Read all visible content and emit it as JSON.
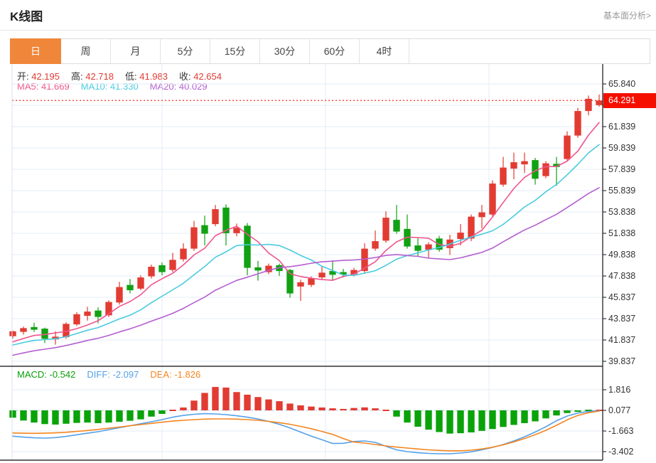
{
  "header": {
    "title": "K线图",
    "analysis_link": "基本面分析>"
  },
  "tabs": {
    "items": [
      {
        "key": "day",
        "label": "日"
      },
      {
        "key": "week",
        "label": "周"
      },
      {
        "key": "month",
        "label": "月"
      },
      {
        "key": "5min",
        "label": "5分"
      },
      {
        "key": "15min",
        "label": "15分"
      },
      {
        "key": "30min",
        "label": "30分"
      },
      {
        "key": "60min",
        "label": "60分"
      },
      {
        "key": "4h",
        "label": "4时"
      }
    ],
    "selected_key": "day"
  },
  "readout": {
    "ohlc": [
      {
        "label": "开:",
        "value": "42.195"
      },
      {
        "label": "高:",
        "value": "42.718"
      },
      {
        "label": "低:",
        "value": "41.983"
      },
      {
        "label": "收:",
        "value": "42.654"
      }
    ],
    "ma": [
      {
        "label": "MA5:",
        "value": "41.669",
        "color": "#f0558d"
      },
      {
        "label": "MA10:",
        "value": "41.330",
        "color": "#49cbe0"
      },
      {
        "label": "MA20:",
        "value": "40.029",
        "color": "#b45fd0"
      }
    ],
    "macd": [
      {
        "label": "MACD:",
        "value": "-0.542",
        "color": "#0a9f0a"
      },
      {
        "label": "DIFF:",
        "value": "-2.097",
        "color": "#55a0e8"
      },
      {
        "label": "DEA:",
        "value": "-1.826",
        "color": "#f5851f"
      }
    ]
  },
  "price_axis": {
    "ticks": [
      "65.840",
      "63.840",
      "61.839",
      "59.839",
      "57.839",
      "55.839",
      "53.838",
      "51.838",
      "49.838",
      "47.838",
      "45.837",
      "43.837",
      "41.837",
      "39.837"
    ],
    "last_price": "64.291"
  },
  "macd_axis": {
    "ticks": [
      "1.816",
      "0.077",
      "-1.663",
      "-3.402"
    ]
  },
  "colors": {
    "up": "#e23b32",
    "down": "#12a113",
    "ma5": "#f0558d",
    "ma10": "#49cbe0",
    "ma20": "#b45fd0",
    "diff": "#55a0e8",
    "dea": "#f5851f",
    "hist_red": "#e23b32",
    "hist_green": "#09a309",
    "accent_orange": "#f0863a",
    "badge_red": "#f40f00",
    "dotted_red": "#ff2d1e",
    "grid": "#e3ecf7",
    "zero_dash": "#a8cdf0",
    "axis_text": "#333333",
    "border_dark": "#333333",
    "border_light": "#d8e2ee",
    "value_red": "#e23b32"
  },
  "chart_data": {
    "type": "candlestick",
    "sub_chart": "macd",
    "axis": {
      "price_min": 39.837,
      "price_max": 65.84,
      "last_close": 64.291,
      "macd_min": -3.402,
      "macd_max": 1.816
    },
    "candles": [
      [
        42.195,
        42.718,
        41.983,
        42.654
      ],
      [
        42.6,
        43.1,
        42.35,
        42.95
      ],
      [
        43.05,
        43.45,
        42.6,
        42.8
      ],
      [
        42.9,
        43.0,
        41.55,
        41.95
      ],
      [
        41.9,
        42.65,
        41.4,
        42.15
      ],
      [
        42.1,
        43.5,
        41.95,
        43.35
      ],
      [
        43.3,
        44.45,
        43.15,
        44.25
      ],
      [
        44.1,
        44.95,
        43.65,
        44.5
      ],
      [
        44.6,
        44.9,
        43.4,
        44.0
      ],
      [
        44.15,
        45.55,
        44.0,
        45.4
      ],
      [
        45.35,
        47.3,
        45.15,
        46.8
      ],
      [
        47.0,
        47.55,
        46.2,
        46.5
      ],
      [
        46.65,
        47.9,
        46.5,
        47.7
      ],
      [
        47.8,
        48.9,
        47.6,
        48.7
      ],
      [
        48.85,
        49.1,
        47.9,
        48.2
      ],
      [
        48.4,
        50.0,
        48.2,
        49.35
      ],
      [
        49.4,
        50.9,
        49.2,
        50.4
      ],
      [
        50.4,
        53.0,
        50.2,
        52.4
      ],
      [
        52.6,
        53.5,
        50.7,
        51.8
      ],
      [
        52.7,
        54.5,
        52.5,
        54.1
      ],
      [
        54.25,
        54.55,
        50.7,
        51.85
      ],
      [
        51.85,
        52.75,
        51.55,
        52.35
      ],
      [
        52.55,
        52.8,
        47.9,
        48.6
      ],
      [
        48.65,
        49.25,
        47.4,
        48.35
      ],
      [
        48.2,
        49.0,
        48.0,
        48.8
      ],
      [
        48.85,
        49.0,
        47.85,
        48.3
      ],
      [
        48.4,
        48.5,
        45.8,
        46.2
      ],
      [
        46.85,
        47.5,
        45.5,
        47.25
      ],
      [
        47.0,
        47.8,
        46.8,
        47.6
      ],
      [
        47.7,
        48.8,
        47.5,
        48.15
      ],
      [
        48.3,
        49.3,
        47.4,
        47.95
      ],
      [
        48.2,
        48.5,
        47.7,
        47.98
      ],
      [
        48.0,
        48.6,
        47.8,
        48.4
      ],
      [
        48.3,
        50.9,
        48.1,
        50.4
      ],
      [
        50.4,
        52.1,
        50.2,
        51.1
      ],
      [
        51.15,
        53.9,
        50.95,
        53.3
      ],
      [
        53.1,
        54.5,
        51.8,
        52.0
      ],
      [
        52.25,
        53.6,
        50.4,
        50.6
      ],
      [
        50.7,
        51.4,
        49.7,
        50.2
      ],
      [
        50.3,
        51.0,
        49.5,
        50.8
      ],
      [
        51.35,
        51.6,
        50.1,
        50.3
      ],
      [
        50.45,
        51.7,
        49.8,
        51.25
      ],
      [
        51.3,
        52.7,
        50.7,
        51.9
      ],
      [
        51.35,
        53.6,
        51.1,
        53.4
      ],
      [
        53.35,
        54.5,
        52.3,
        53.8
      ],
      [
        53.6,
        56.8,
        53.4,
        56.5
      ],
      [
        56.4,
        59.0,
        56.2,
        58.0
      ],
      [
        57.9,
        59.4,
        56.9,
        58.5
      ],
      [
        58.3,
        59.4,
        57.5,
        58.6
      ],
      [
        58.7,
        58.9,
        56.4,
        56.95
      ],
      [
        57.2,
        58.6,
        57.0,
        58.4
      ],
      [
        58.35,
        59.0,
        56.3,
        58.05
      ],
      [
        58.8,
        61.4,
        58.6,
        61.0
      ],
      [
        61.0,
        63.6,
        60.8,
        63.3
      ],
      [
        63.3,
        64.75,
        62.9,
        64.45
      ],
      [
        63.85,
        64.85,
        63.7,
        64.291
      ]
    ],
    "ma_history_closes": [
      38.6,
      38.8,
      39.0,
      39.2,
      39.4,
      39.5,
      39.7,
      39.9,
      40.1,
      40.3,
      40.6,
      40.9,
      41.1,
      41.3,
      41.5,
      41.3,
      41.4,
      41.5,
      41.4
    ],
    "macd": {
      "hist": [
        -0.54,
        -0.78,
        -0.95,
        -1.08,
        -1.12,
        -1.05,
        -0.98,
        -0.95,
        -1.0,
        -0.95,
        -0.88,
        -0.8,
        -0.68,
        -0.45,
        -0.22,
        0.05,
        0.32,
        0.9,
        1.55,
        2.05,
        2.0,
        1.62,
        1.4,
        1.2,
        1.0,
        0.85,
        0.65,
        0.5,
        0.4,
        0.32,
        0.25,
        0.2,
        0.28,
        0.33,
        0.25,
        0.05,
        -0.45,
        -0.95,
        -1.3,
        -1.55,
        -1.75,
        -1.88,
        -1.85,
        -1.78,
        -1.65,
        -1.5,
        -1.32,
        -1.15,
        -1.0,
        -0.85,
        -0.6,
        -0.35,
        -0.15,
        -0.05,
        -0.02,
        0.02
      ],
      "diff": [
        -2.1,
        -2.18,
        -2.24,
        -2.26,
        -2.22,
        -2.12,
        -1.98,
        -1.85,
        -1.72,
        -1.55,
        -1.38,
        -1.22,
        -1.05,
        -0.88,
        -0.7,
        -0.5,
        -0.35,
        -0.25,
        -0.2,
        -0.22,
        -0.28,
        -0.38,
        -0.5,
        -0.65,
        -0.85,
        -1.1,
        -1.4,
        -1.75,
        -2.1,
        -2.4,
        -2.72,
        -2.7,
        -2.55,
        -2.5,
        -2.62,
        -2.95,
        -3.25,
        -3.4,
        -3.5,
        -3.55,
        -3.58,
        -3.58,
        -3.52,
        -3.42,
        -3.25,
        -3.05,
        -2.8,
        -2.5,
        -2.15,
        -1.75,
        -1.3,
        -0.8,
        -0.4,
        -0.15,
        -0.02,
        0.05
      ],
      "dea": [
        -1.83,
        -1.85,
        -1.86,
        -1.85,
        -1.82,
        -1.77,
        -1.7,
        -1.62,
        -1.53,
        -1.43,
        -1.33,
        -1.22,
        -1.12,
        -1.02,
        -0.92,
        -0.83,
        -0.76,
        -0.7,
        -0.66,
        -0.64,
        -0.64,
        -0.66,
        -0.7,
        -0.76,
        -0.85,
        -0.96,
        -1.1,
        -1.27,
        -1.47,
        -1.7,
        -1.95,
        -2.3,
        -2.6,
        -2.68,
        -2.8,
        -2.92,
        -3.02,
        -3.1,
        -3.18,
        -3.25,
        -3.3,
        -3.33,
        -3.33,
        -3.28,
        -3.18,
        -3.03,
        -2.83,
        -2.58,
        -2.3,
        -1.98,
        -1.6,
        -1.18,
        -0.72,
        -0.35,
        -0.12,
        0.02
      ]
    }
  }
}
